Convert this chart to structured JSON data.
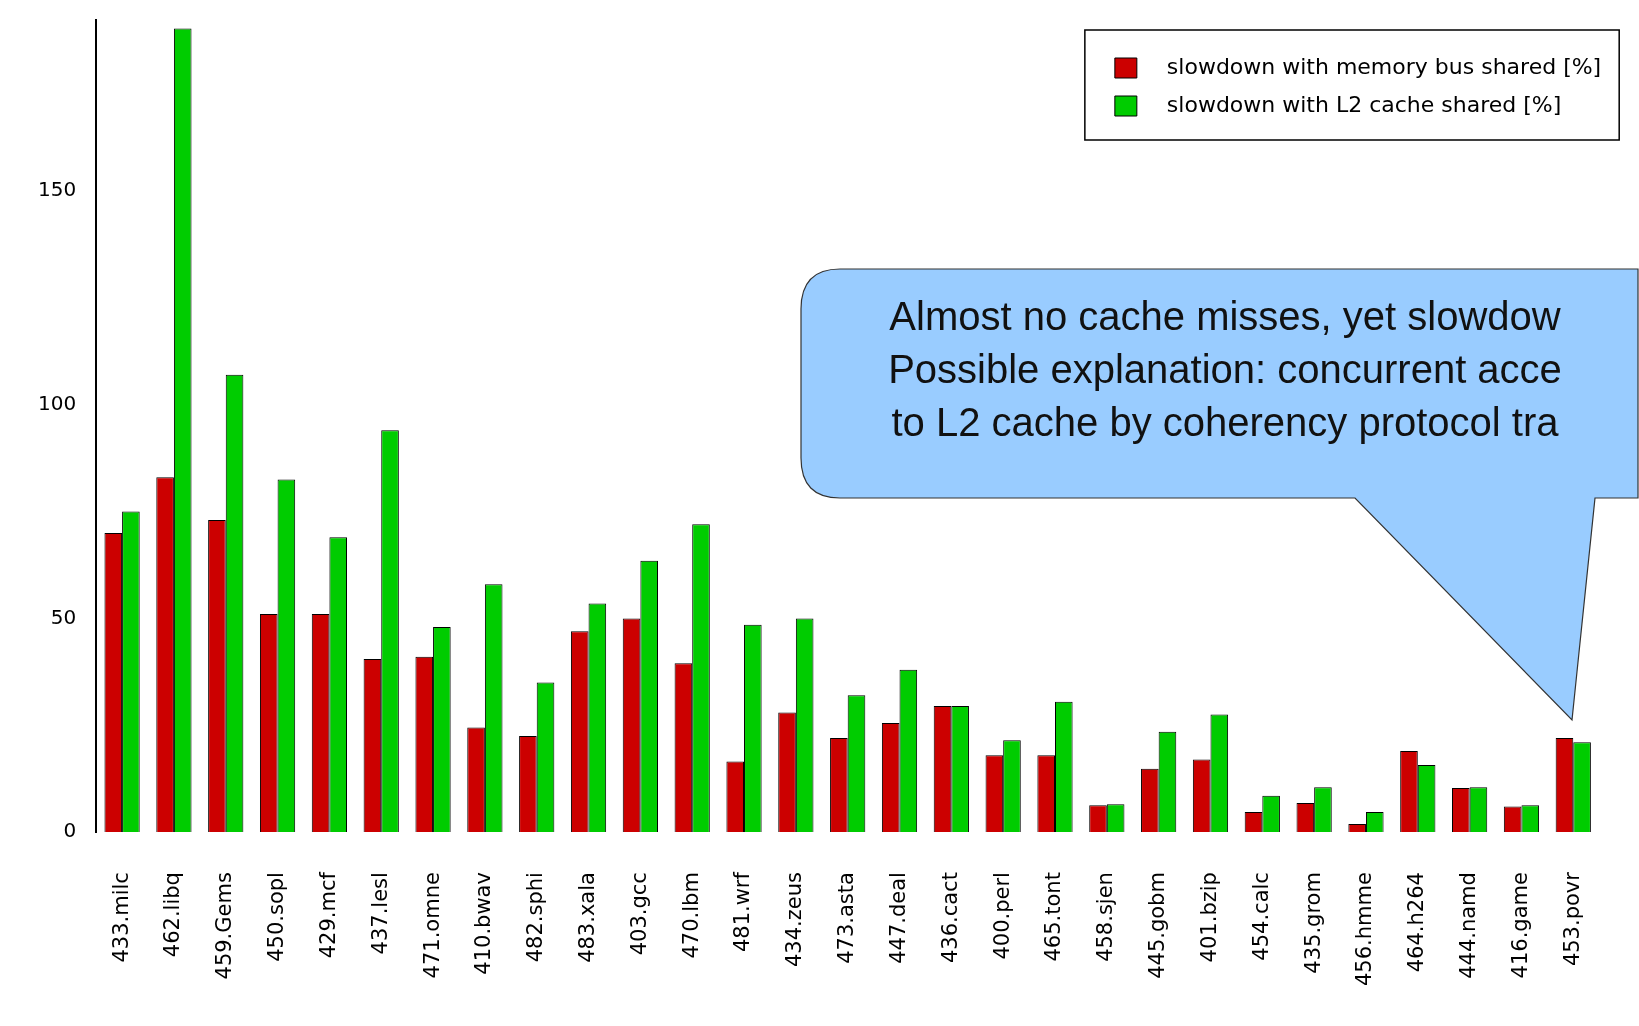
{
  "chart_data": {
    "type": "bar",
    "categories": [
      "433.milc",
      "462.libq",
      "459.Gems",
      "450.sopl",
      "429.mcf",
      "437.lesl",
      "471.omne",
      "410.bwav",
      "482.sphi",
      "483.xala",
      "403.gcc",
      "470.lbm",
      "481.wrf",
      "434.zeus",
      "473.asta",
      "447.deal",
      "436.cact",
      "400.perl",
      "465.tont",
      "458.sjen",
      "445.gobm",
      "401.bzip",
      "454.calc",
      "435.grom",
      "456.hmme",
      "464.h264",
      "444.namd",
      "416.game",
      "453.povr"
    ],
    "series": [
      {
        "name": "slowdown with memory bus shared [%]",
        "color": "#cc0000",
        "values": [
          70,
          83,
          73,
          51,
          51,
          40.5,
          41,
          24.5,
          22.5,
          47,
          50,
          39.5,
          16.5,
          28,
          22,
          25.5,
          29.5,
          18,
          18,
          6.3,
          14.8,
          17,
          4.7,
          6.8,
          1.9,
          19,
          10.3,
          6,
          22
        ]
      },
      {
        "name": "slowdown with L2 cache shared [%]",
        "color": "#00cc00",
        "values": [
          75,
          188,
          107,
          82.5,
          69,
          94,
          48,
          58,
          35,
          53.5,
          63.5,
          72,
          48.5,
          50,
          32,
          38,
          29.5,
          21.5,
          30.5,
          6.5,
          23.5,
          27.5,
          8.5,
          10.5,
          4.7,
          15.7,
          10.5,
          6.3,
          21
        ]
      }
    ],
    "ylim": [
      0,
      190
    ],
    "yticks": [
      0,
      50,
      100,
      150
    ],
    "grid": false,
    "legend": "top right",
    "annotations": [
      "Almost no cache misses, yet slowdow\nPossible explanation: concurrent acce\nto L2 cache by coherency protocol tra"
    ]
  }
}
